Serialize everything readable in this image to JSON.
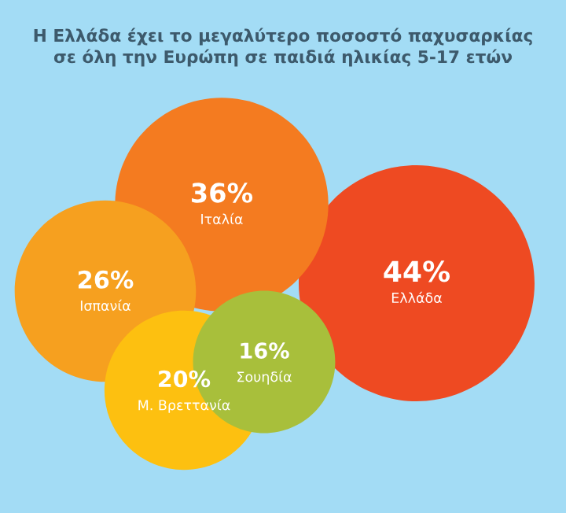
{
  "chart_data": {
    "type": "other",
    "title": "Η Ελλάδα έχει το μεγαλύτερο ποσοστό παχυσαρκίας\nσε όλη την Ευρώπη σε παιδιά ηλικίας 5-17 ετών",
    "categories": [
      "Ελλάδα",
      "Ιταλία",
      "Ισπανία",
      "Μ. Βρεττανία",
      "Σουηδία"
    ],
    "values": [
      44,
      36,
      26,
      20,
      16
    ],
    "value_labels": [
      "44%",
      "36%",
      "26%",
      "20%",
      "16%"
    ],
    "colors": [
      "#ee4a22",
      "#f47b20",
      "#f6a01f",
      "#fdc010",
      "#a8bf3b"
    ]
  }
}
